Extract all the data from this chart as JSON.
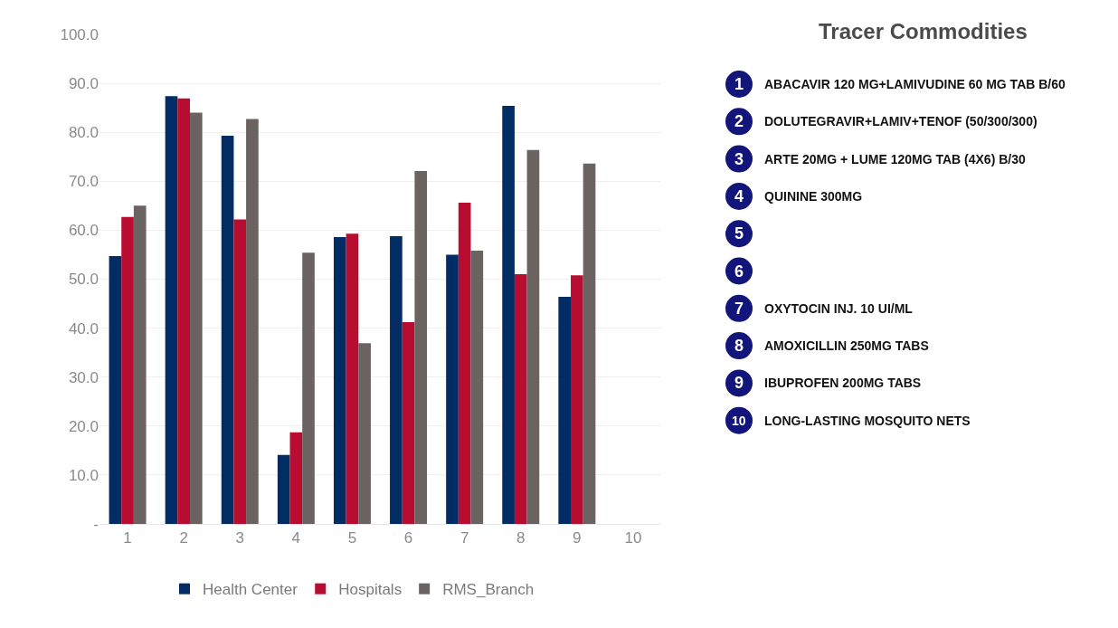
{
  "chart_data": {
    "type": "bar",
    "categories": [
      "1",
      "2",
      "3",
      "4",
      "5",
      "6",
      "7",
      "8",
      "9",
      "10"
    ],
    "series": [
      {
        "name": "Health Center",
        "color": "#022c64",
        "values": [
          54.7,
          87.4,
          79.3,
          14.1,
          58.6,
          58.8,
          55.0,
          85.4,
          46.4,
          null
        ]
      },
      {
        "name": "Hospitals",
        "color": "#b80d30",
        "values": [
          62.7,
          86.9,
          62.2,
          18.7,
          59.3,
          41.2,
          65.6,
          51.0,
          50.8,
          null
        ]
      },
      {
        "name": "RMS_Branch",
        "color": "#6b6361",
        "values": [
          65.0,
          84.0,
          82.7,
          55.4,
          36.9,
          72.1,
          55.8,
          76.4,
          73.6,
          null
        ]
      }
    ],
    "ylim": [
      0,
      100
    ],
    "yticks": [
      {
        "value": 0,
        "label": "-"
      },
      {
        "value": 10,
        "label": "10.0"
      },
      {
        "value": 20,
        "label": "20.0"
      },
      {
        "value": 30,
        "label": "30.0"
      },
      {
        "value": 40,
        "label": "40.0"
      },
      {
        "value": 50,
        "label": "50.0"
      },
      {
        "value": 60,
        "label": "60.0"
      },
      {
        "value": 70,
        "label": "70.0"
      },
      {
        "value": 80,
        "label": "80.0"
      },
      {
        "value": 90,
        "label": "90.0"
      },
      {
        "value": 100,
        "label": "100.0"
      }
    ],
    "grid": "y",
    "legend": "bottom",
    "annotations": [
      "Tracer Commodities",
      "ABACAVIR 120 MG+LAMIVUDINE 60 MG TAB B/60",
      "DOLUTEGRAVIR+LAMIV+TENOF (50/300/300)",
      "ARTE 20MG + LUME 120MG TAB (4X6) B/30",
      "QUININE 300MG",
      null,
      null,
      "OXYTOCIN INJ. 10 UI/ML",
      "AMOXICILLIN 250MG TABS",
      "IBUPROFEN 200MG TABS",
      "LONG-LASTING MOSQUITO NETS"
    ]
  }
}
